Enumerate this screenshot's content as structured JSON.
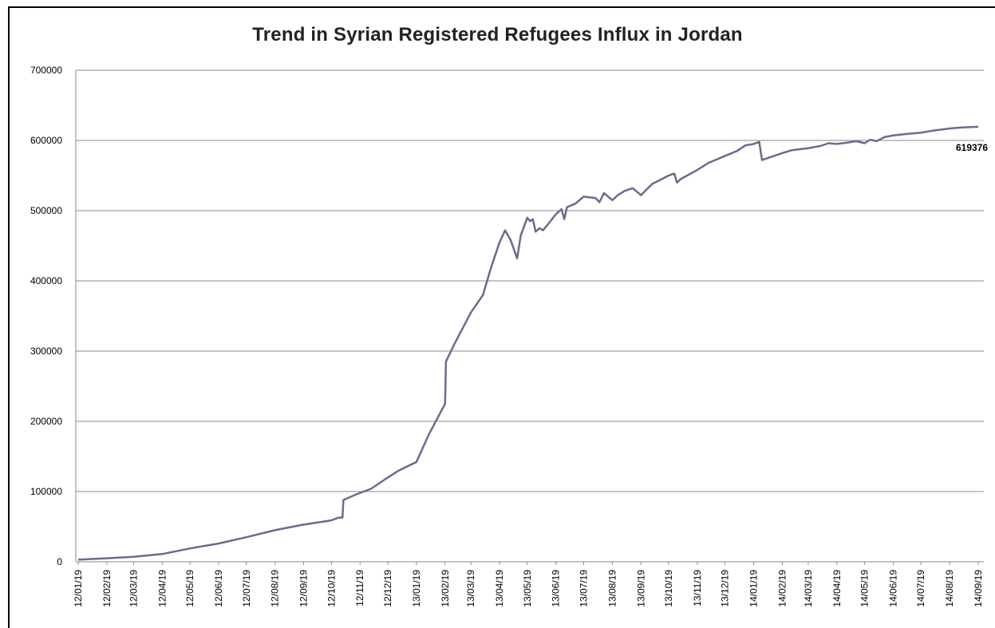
{
  "chart_data": {
    "type": "line",
    "title": "Trend in Syrian Registered Refugees Influx in Jordan",
    "xlabel": "",
    "ylabel": "",
    "ylim": [
      0,
      700000
    ],
    "yticks": [
      "0",
      "100000",
      "200000",
      "300000",
      "400000",
      "500000",
      "600000",
      "700000"
    ],
    "xticks": [
      "12/01/19",
      "12/02/19",
      "12/03/19",
      "12/04/19",
      "12/05/19",
      "12/06/19",
      "12/07/19",
      "12/08/19",
      "12/09/19",
      "12/10/19",
      "12/11/19",
      "12/12/19",
      "13/01/19",
      "13/02/19",
      "13/03/19",
      "13/04/19",
      "13/05/19",
      "13/06/19",
      "13/07/19",
      "13/08/19",
      "13/09/19",
      "13/10/19",
      "13/11/19",
      "13/12/19",
      "14/01/19",
      "14/02/19",
      "14/03/19",
      "14/04/19",
      "14/05/19",
      "14/06/19",
      "14/07/19",
      "14/08/19",
      "14/09/19"
    ],
    "grid": true,
    "line_color": "#6b6b8e",
    "end_label": "619376",
    "series": [
      {
        "points": [
          [
            "12/01/19",
            3000
          ],
          [
            "12/02/19",
            5000
          ],
          [
            "12/03/19",
            7000
          ],
          [
            "12/04/19",
            11000
          ],
          [
            "12/05/19",
            19000
          ],
          [
            "12/06/19",
            26000
          ],
          [
            "12/07/19",
            35000
          ],
          [
            "12/08/19",
            45000
          ],
          [
            "12/09/19",
            53000
          ],
          [
            "12/10/19",
            59000
          ],
          [
            "12/10/27",
            63000
          ],
          [
            "12/10/31",
            63000
          ],
          [
            "12/11/01",
            88000
          ],
          [
            "12/11/15",
            96000
          ],
          [
            "12/12/01",
            104000
          ],
          [
            "12/12/19",
            120000
          ],
          [
            "12/12/31",
            130000
          ],
          [
            "13/01/19",
            142000
          ],
          [
            "13/02/01",
            180000
          ],
          [
            "13/02/19",
            225000
          ],
          [
            "13/02/20",
            285000
          ],
          [
            "13/03/01",
            310000
          ],
          [
            "13/03/19",
            355000
          ],
          [
            "13/04/01",
            380000
          ],
          [
            "13/04/10",
            420000
          ],
          [
            "13/04/19",
            455000
          ],
          [
            "13/04/25",
            472000
          ],
          [
            "13/05/01",
            458000
          ],
          [
            "13/05/08",
            432000
          ],
          [
            "13/05/12",
            465000
          ],
          [
            "13/05/19",
            490000
          ],
          [
            "13/05/22",
            485000
          ],
          [
            "13/05/25",
            488000
          ],
          [
            "13/05/28",
            470000
          ],
          [
            "13/06/01",
            475000
          ],
          [
            "13/06/05",
            472000
          ],
          [
            "13/06/10",
            480000
          ],
          [
            "13/06/19",
            495000
          ],
          [
            "13/06/25",
            502000
          ],
          [
            "13/06/28",
            488000
          ],
          [
            "13/07/01",
            505000
          ],
          [
            "13/07/10",
            510000
          ],
          [
            "13/07/19",
            520000
          ],
          [
            "13/08/01",
            518000
          ],
          [
            "13/08/05",
            512000
          ],
          [
            "13/08/10",
            525000
          ],
          [
            "13/08/19",
            515000
          ],
          [
            "13/08/25",
            522000
          ],
          [
            "13/09/01",
            528000
          ],
          [
            "13/09/10",
            532000
          ],
          [
            "13/09/19",
            522000
          ],
          [
            "13/10/01",
            538000
          ],
          [
            "13/10/19",
            550000
          ],
          [
            "13/10/25",
            553000
          ],
          [
            "13/10/28",
            540000
          ],
          [
            "13/11/01",
            545000
          ],
          [
            "13/11/19",
            558000
          ],
          [
            "13/12/01",
            568000
          ],
          [
            "13/12/19",
            578000
          ],
          [
            "14/01/01",
            585000
          ],
          [
            "14/01/10",
            593000
          ],
          [
            "14/01/19",
            595000
          ],
          [
            "14/01/25",
            598000
          ],
          [
            "14/01/28",
            572000
          ],
          [
            "14/02/19",
            582000
          ],
          [
            "14/03/01",
            586000
          ],
          [
            "14/03/19",
            589000
          ],
          [
            "14/04/01",
            592000
          ],
          [
            "14/04/10",
            596000
          ],
          [
            "14/04/19",
            595000
          ],
          [
            "14/05/01",
            597000
          ],
          [
            "14/05/10",
            599000
          ],
          [
            "14/05/19",
            596000
          ],
          [
            "14/05/25",
            601000
          ],
          [
            "14/06/01",
            599000
          ],
          [
            "14/06/10",
            605000
          ],
          [
            "14/06/19",
            607000
          ],
          [
            "14/07/01",
            609000
          ],
          [
            "14/07/19",
            611000
          ],
          [
            "14/08/01",
            614000
          ],
          [
            "14/08/19",
            617000
          ],
          [
            "14/09/01",
            618500
          ],
          [
            "14/09/19",
            619376
          ]
        ]
      }
    ]
  }
}
